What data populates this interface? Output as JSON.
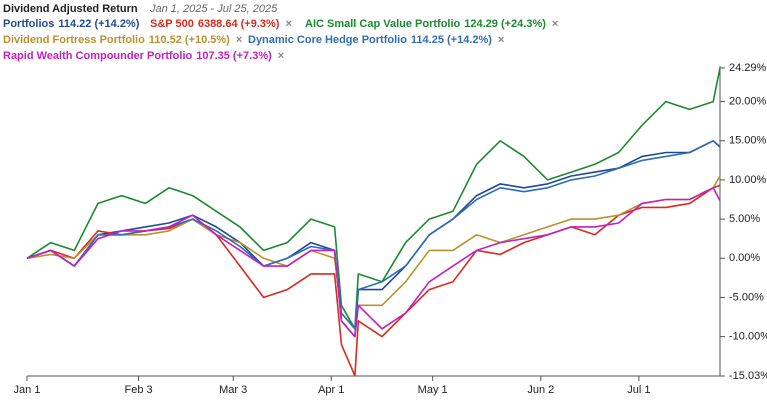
{
  "chart_data": {
    "type": "line",
    "title": "Dividend Adjusted Return",
    "subtitle": "Jan 1, 2025 - Jul 25, 2025",
    "x": [
      "2025-01-01",
      "2025-01-08",
      "2025-01-15",
      "2025-01-22",
      "2025-01-29",
      "2025-02-05",
      "2025-02-12",
      "2025-02-19",
      "2025-02-26",
      "2025-03-05",
      "2025-03-12",
      "2025-03-19",
      "2025-03-26",
      "2025-04-02",
      "2025-04-04",
      "2025-04-08",
      "2025-04-09",
      "2025-04-16",
      "2025-04-23",
      "2025-04-30",
      "2025-05-07",
      "2025-05-14",
      "2025-05-21",
      "2025-05-28",
      "2025-06-04",
      "2025-06-11",
      "2025-06-18",
      "2025-06-25",
      "2025-07-02",
      "2025-07-09",
      "2025-07-16",
      "2025-07-23",
      "2025-07-25"
    ],
    "xlim": [
      "2025-01-01",
      "2025-07-25"
    ],
    "xticks": [
      {
        "value": "2025-01-01",
        "label": "Jan 1"
      },
      {
        "value": "2025-02-03",
        "label": "Feb 3"
      },
      {
        "value": "2025-03-03",
        "label": "Mar 3"
      },
      {
        "value": "2025-04-01",
        "label": "Apr 1"
      },
      {
        "value": "2025-05-01",
        "label": "May 1"
      },
      {
        "value": "2025-06-02",
        "label": "Jun 2"
      },
      {
        "value": "2025-07-01",
        "label": "Jul 1"
      }
    ],
    "ylim": [
      -15.03,
      24.29
    ],
    "yticks": [
      {
        "value": -15.03,
        "label": "-15.03%"
      },
      {
        "value": -10,
        "label": "-10.00%"
      },
      {
        "value": -5,
        "label": "-5.00%"
      },
      {
        "value": 0,
        "label": "0.00%"
      },
      {
        "value": 5,
        "label": "5.00%"
      },
      {
        "value": 10,
        "label": "10.00%"
      },
      {
        "value": 15,
        "label": "15.00%"
      },
      {
        "value": 20,
        "label": "20.00%"
      },
      {
        "value": 24.29,
        "label": "24.29%"
      }
    ],
    "grid": false,
    "series": [
      {
        "name": "Portfolios",
        "summary": "114.22 (+14.2%)",
        "color": "#1f4a96",
        "values": [
          0,
          1,
          -1,
          3,
          3.5,
          4,
          4.5,
          5.5,
          4,
          2,
          -1,
          0,
          2,
          1,
          -8,
          -10,
          -4,
          -4,
          -1,
          3,
          5,
          8,
          9.5,
          9,
          9.5,
          10.5,
          11,
          11.5,
          13,
          13.5,
          13.5,
          15,
          14.2
        ]
      },
      {
        "name": "S&P 500",
        "summary": "6388.64 (+9.3%)",
        "color": "#d92a1c",
        "values": [
          0,
          1,
          0,
          3.5,
          3,
          3.5,
          3.8,
          5,
          3,
          -1,
          -5,
          -4,
          -2,
          -2,
          -11,
          -15,
          -8,
          -10,
          -7,
          -4,
          -3,
          1,
          0.5,
          2,
          3,
          4,
          3,
          5.5,
          6.5,
          6.5,
          7,
          9,
          9.3
        ]
      },
      {
        "name": "AIC Small Cap Value Portfolio",
        "summary": "124.29 (+24.3%)",
        "color": "#1b8a2e",
        "values": [
          0,
          2,
          1,
          7,
          8,
          7,
          9,
          8,
          6,
          4,
          1,
          2,
          5,
          4,
          -6,
          -9,
          -2,
          -3,
          2,
          5,
          6,
          12,
          15,
          13,
          10,
          11,
          12,
          13.5,
          17,
          20,
          19,
          20,
          24.3
        ]
      },
      {
        "name": "Dividend Fortress Portfolio",
        "summary": "110.52 (+10.5%)",
        "color": "#b8922c",
        "values": [
          0,
          0.5,
          0,
          3,
          3,
          3,
          3.5,
          5,
          3,
          2,
          0,
          -1,
          1,
          0,
          -7,
          -9,
          -6,
          -6,
          -3,
          1,
          1,
          3,
          2,
          3,
          4,
          5,
          5,
          5.5,
          7,
          7.5,
          7.5,
          9,
          10.5
        ]
      },
      {
        "name": "Dynamic Core Hedge Portfolio",
        "summary": "114.25 (+14.2%)",
        "color": "#2f6db5",
        "values": [
          0,
          1,
          -1,
          3,
          3,
          3.5,
          4,
          5,
          3.5,
          1.5,
          -1,
          0,
          1.5,
          1,
          -7,
          -9,
          -4,
          -3,
          -1,
          3,
          5,
          7.5,
          9,
          8.5,
          9,
          10,
          10.5,
          11.5,
          12.5,
          13,
          13.5,
          15,
          14.25
        ]
      },
      {
        "name": "Rapid Wealth Compounder Portfolio",
        "summary": "107.35 (+7.3%)",
        "color": "#c41fc4",
        "values": [
          0,
          1,
          -1,
          2.5,
          3.5,
          3.5,
          4,
          5.5,
          3,
          1,
          -1,
          -1,
          1,
          1,
          -8,
          -10,
          -6,
          -9,
          -7,
          -3,
          -1,
          1,
          2,
          2.5,
          3,
          4,
          4,
          4.5,
          7,
          7.5,
          7.5,
          9,
          7.35
        ]
      }
    ]
  }
}
